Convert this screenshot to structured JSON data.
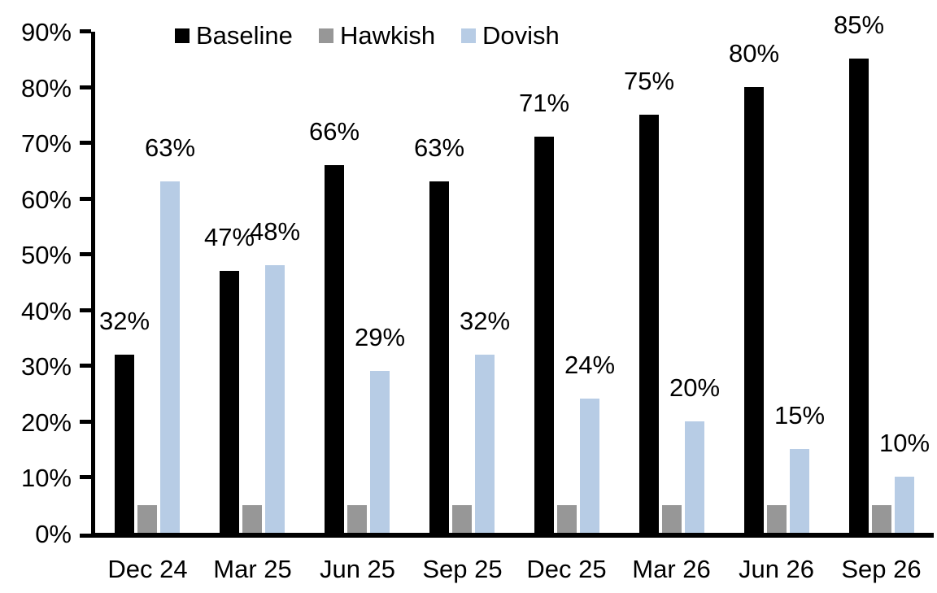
{
  "chart_data": {
    "type": "bar",
    "title": "",
    "categories": [
      "Dec 24",
      "Mar 25",
      "Jun 25",
      "Sep 25",
      "Dec 25",
      "Mar 26",
      "Jun 26",
      "Sep 26"
    ],
    "series": [
      {
        "name": "Baseline",
        "color": "#000000",
        "values": [
          32,
          47,
          66,
          63,
          71,
          75,
          80,
          85
        ],
        "data_labels": [
          "32%",
          "47%",
          "66%",
          "63%",
          "71%",
          "75%",
          "80%",
          "85%"
        ]
      },
      {
        "name": "Hawkish",
        "color": "#979797",
        "values": [
          5,
          5,
          5,
          5,
          5,
          5,
          5,
          5
        ],
        "data_labels": null
      },
      {
        "name": "Dovish",
        "color": "#B7CCE5",
        "values": [
          63,
          48,
          29,
          32,
          24,
          20,
          15,
          10
        ],
        "data_labels": [
          "63%",
          "48%",
          "29%",
          "32%",
          "24%",
          "20%",
          "15%",
          "10%"
        ]
      }
    ],
    "y_axis": {
      "min": 0,
      "max": 90,
      "tick_labels": [
        "0%",
        "10%",
        "20%",
        "30%",
        "40%",
        "50%",
        "60%",
        "70%",
        "80%",
        "90%"
      ]
    },
    "legend": {
      "position": "top",
      "entries": [
        "Baseline",
        "Hawkish",
        "Dovish"
      ]
    },
    "grid": false,
    "axis_color": "#000000"
  }
}
